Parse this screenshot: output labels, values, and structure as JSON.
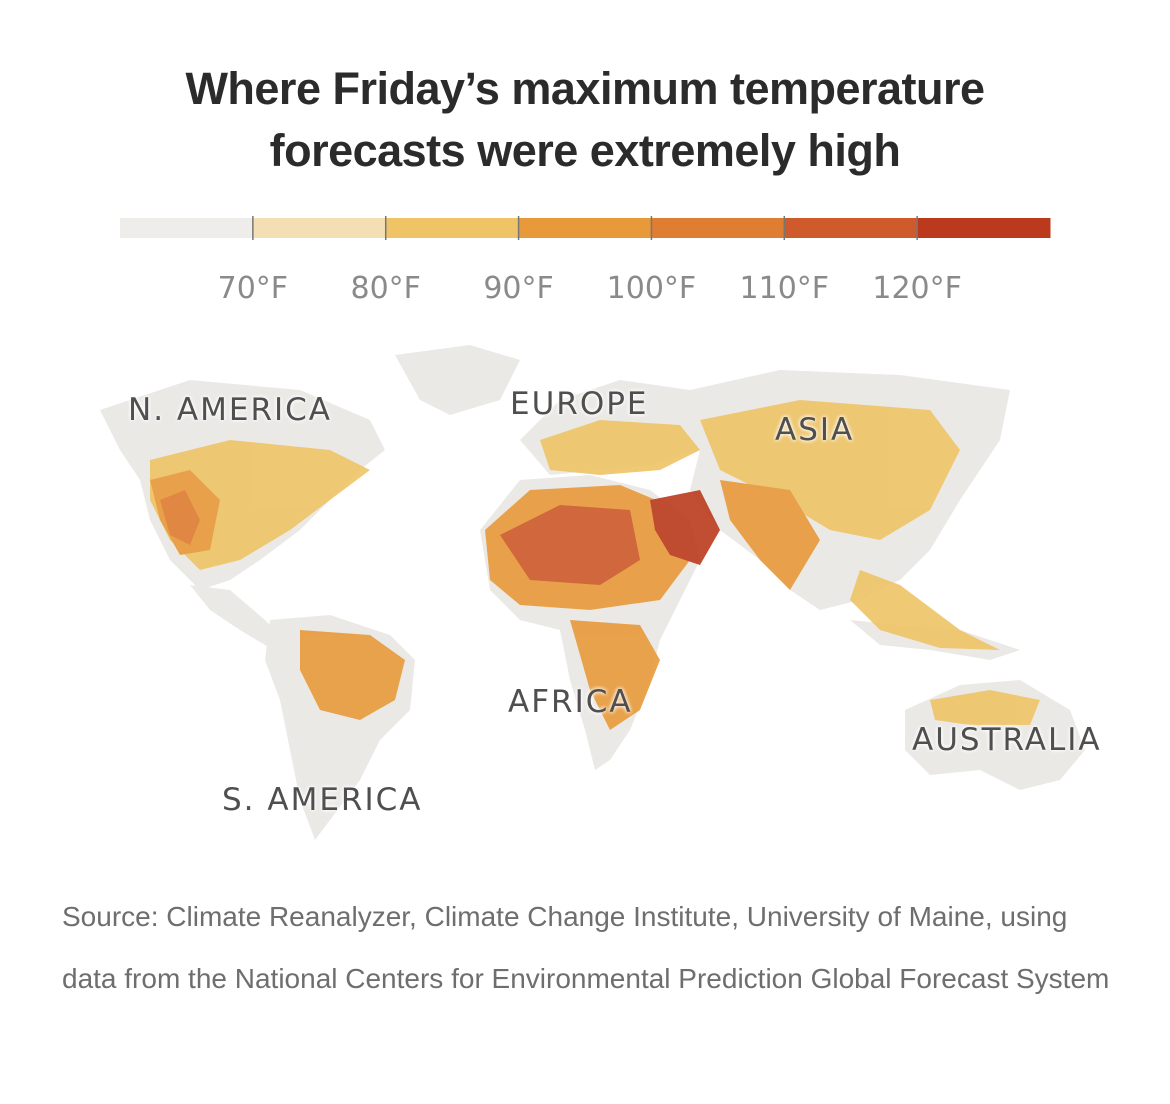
{
  "title": {
    "line1": "Where Friday’s maximum temperature",
    "line2": "forecasts were extremely high"
  },
  "legend": {
    "bins": [
      {
        "color": "#efedea"
      },
      {
        "color": "#f3dfb3"
      },
      {
        "color": "#efc466"
      },
      {
        "color": "#e89a3a"
      },
      {
        "color": "#df7d33"
      },
      {
        "color": "#cf5a2b"
      },
      {
        "color": "#bb3a1e"
      }
    ],
    "ticks": [
      "70°F",
      "80°F",
      "90°F",
      "100°F",
      "110°F",
      "120°F"
    ]
  },
  "map": {
    "labels": {
      "north_america": "N. AMERICA",
      "europe": "EUROPE",
      "asia": "ASIA",
      "africa": "AFRICA",
      "south_america": "S. AMERICA",
      "australia": "AUSTRALIA"
    }
  },
  "source": "Source: Climate Reanalyzer, Climate Change Institute, University of Maine, using data from the National Centers for Environmental Prediction Global Forecast System"
}
